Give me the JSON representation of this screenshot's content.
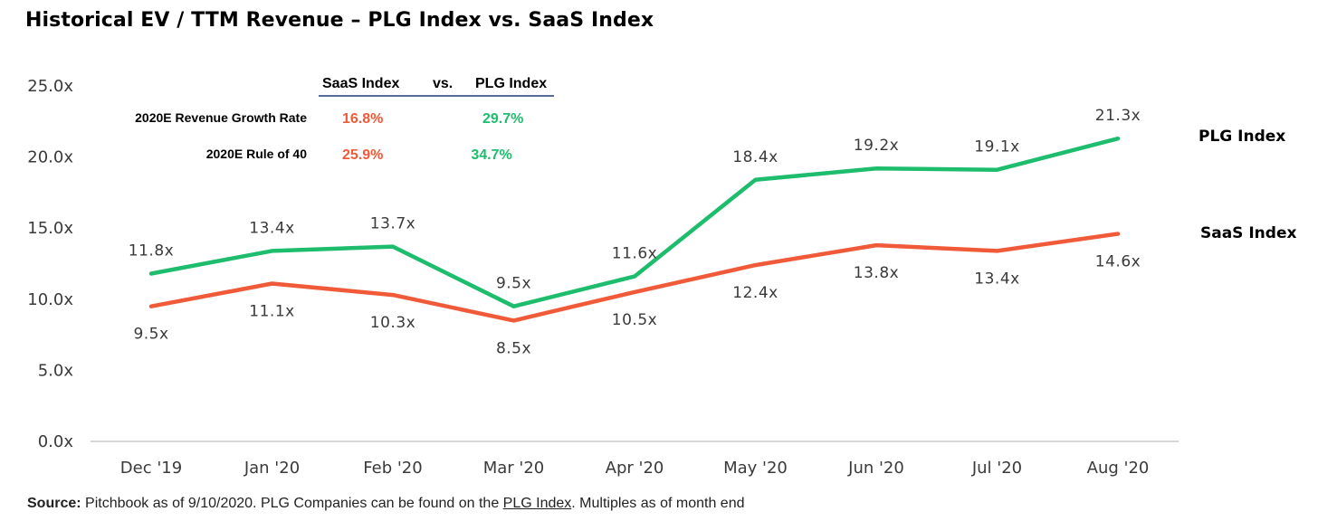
{
  "title": "Historical EV / TTM Revenue – PLG Index vs. SaaS Index",
  "chart_data": {
    "type": "line",
    "categories": [
      "Dec '19",
      "Jan '20",
      "Feb '20",
      "Mar '20",
      "Apr '20",
      "May '20",
      "Jun '20",
      "Jul '20",
      "Aug '20"
    ],
    "series": [
      {
        "name": "PLG Index",
        "color": "#1ebd6e",
        "values": [
          11.8,
          13.4,
          13.7,
          9.5,
          11.6,
          18.4,
          19.2,
          19.1,
          21.3
        ],
        "labels": [
          "11.8x",
          "13.4x",
          "13.7x",
          "9.5x",
          "11.6x",
          "18.4x",
          "19.2x",
          "19.1x",
          "21.3x"
        ]
      },
      {
        "name": "SaaS Index",
        "color": "#f05a38",
        "values": [
          9.5,
          11.1,
          10.3,
          8.5,
          10.5,
          12.4,
          13.8,
          13.4,
          14.6
        ],
        "labels": [
          "9.5x",
          "11.1x",
          "10.3x",
          "8.5x",
          "10.5x",
          "12.4x",
          "13.8x",
          "13.4x",
          "14.6x"
        ]
      }
    ],
    "yticks": [
      0,
      5,
      10,
      15,
      20,
      25
    ],
    "ytick_labels": [
      "0.0x",
      "5.0x",
      "10.0x",
      "15.0x",
      "20.0x",
      "25.0x"
    ],
    "ylim": [
      0,
      25
    ],
    "grid": false,
    "xlabel": "",
    "ylabel": ""
  },
  "inset_table": {
    "header_left": "SaaS Index",
    "header_vs": "vs.",
    "header_right": "PLG Index",
    "rows": [
      {
        "label": "2020E Revenue Growth Rate",
        "saas": "16.8%",
        "plg": "29.7%"
      },
      {
        "label": "2020E Rule of 40",
        "saas": "25.9%",
        "plg": "34.7%"
      }
    ]
  },
  "source": {
    "prefix": "Source:",
    "text_before_link": " Pitchbook as of 9/10/2020. PLG Companies can be found on the ",
    "link_text": "PLG Index",
    "text_after_link": ". Multiples as of month end"
  }
}
